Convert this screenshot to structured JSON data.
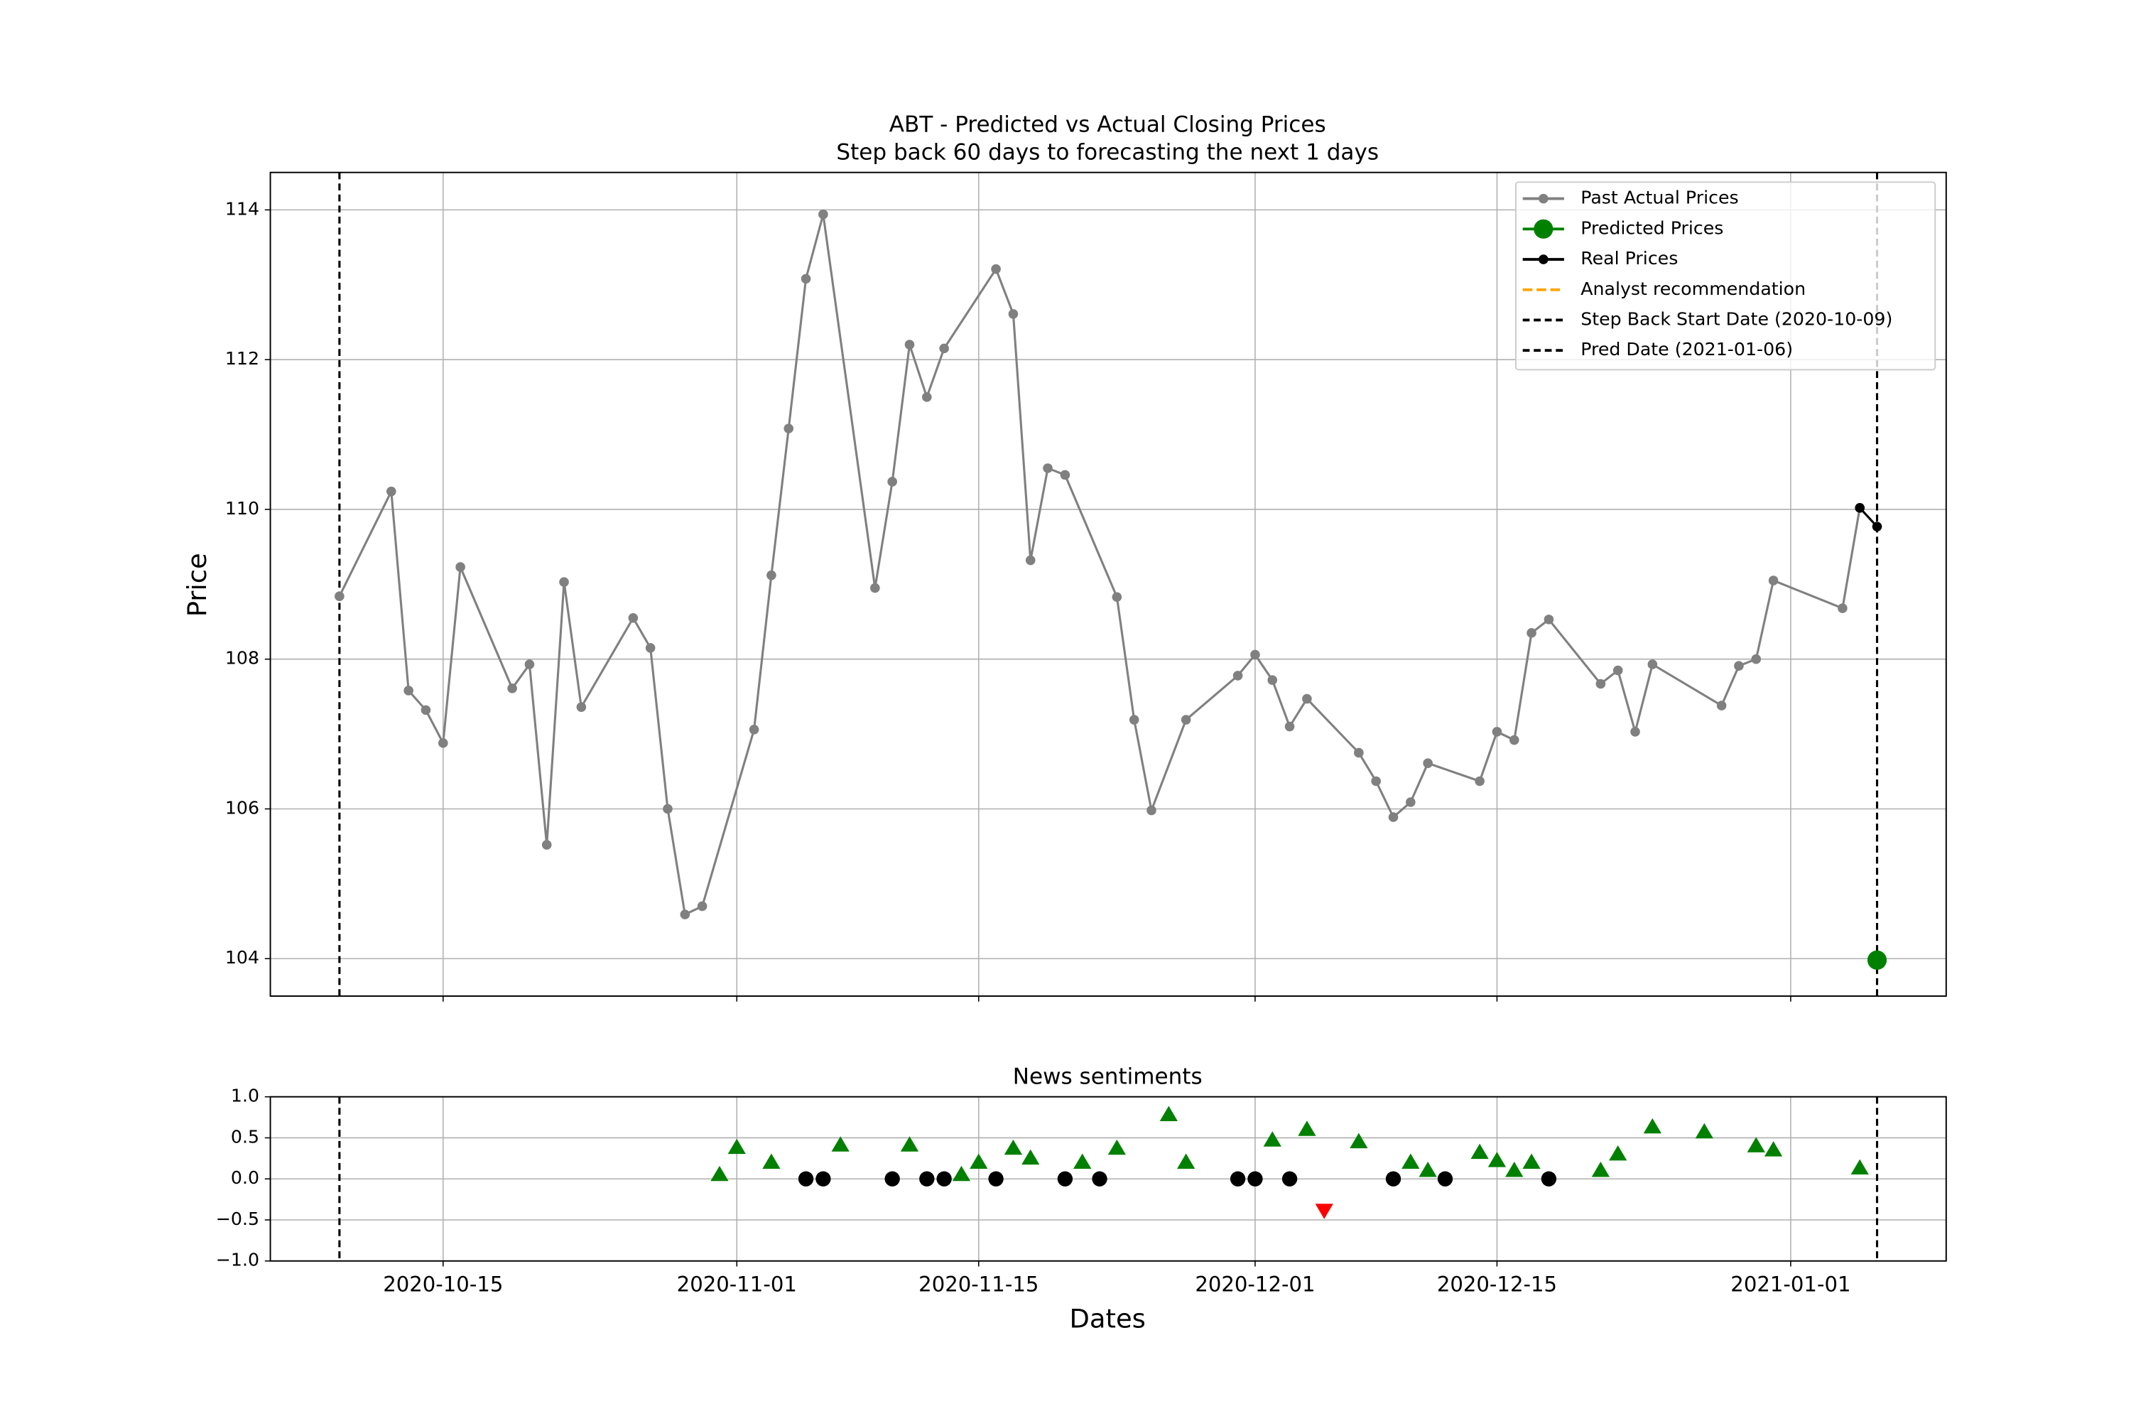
{
  "chart_data": [
    {
      "type": "line",
      "title": "ABT - Predicted vs Actual Closing Prices",
      "subtitle": "Step back 60 days to forecasting the next 1 days",
      "ylabel": "Price",
      "xlim": [
        "2020-10-05",
        "2021-01-10"
      ],
      "xticks": [
        "2020-10-15",
        "2020-11-01",
        "2020-11-15",
        "2020-12-01",
        "2020-12-15",
        "2021-01-01"
      ],
      "ylim": [
        103.5,
        114.5
      ],
      "yticks": [
        104,
        106,
        108,
        110,
        112,
        114
      ],
      "grid": true,
      "legend": "upper right",
      "series": [
        {
          "name": "Past Actual Prices",
          "color": "#808080",
          "x": [
            "2020-10-09",
            "2020-10-12",
            "2020-10-13",
            "2020-10-14",
            "2020-10-15",
            "2020-10-16",
            "2020-10-19",
            "2020-10-20",
            "2020-10-21",
            "2020-10-22",
            "2020-10-23",
            "2020-10-26",
            "2020-10-27",
            "2020-10-28",
            "2020-10-29",
            "2020-10-30",
            "2020-11-02",
            "2020-11-03",
            "2020-11-04",
            "2020-11-05",
            "2020-11-06",
            "2020-11-09",
            "2020-11-10",
            "2020-11-11",
            "2020-11-12",
            "2020-11-13",
            "2020-11-16",
            "2020-11-17",
            "2020-11-18",
            "2020-11-19",
            "2020-11-20",
            "2020-11-23",
            "2020-11-24",
            "2020-11-25",
            "2020-11-27",
            "2020-11-30",
            "2020-12-01",
            "2020-12-02",
            "2020-12-03",
            "2020-12-04",
            "2020-12-07",
            "2020-12-08",
            "2020-12-09",
            "2020-12-10",
            "2020-12-11",
            "2020-12-14",
            "2020-12-15",
            "2020-12-16",
            "2020-12-17",
            "2020-12-18",
            "2020-12-21",
            "2020-12-22",
            "2020-12-23",
            "2020-12-24",
            "2020-12-28",
            "2020-12-29",
            "2020-12-30",
            "2020-12-31",
            "2021-01-04",
            "2021-01-05"
          ],
          "values": [
            108.84,
            110.24,
            107.58,
            107.32,
            106.88,
            109.23,
            107.61,
            107.93,
            105.52,
            109.03,
            107.36,
            108.55,
            108.15,
            106.0,
            104.59,
            104.7,
            107.06,
            109.12,
            111.08,
            113.08,
            113.94,
            108.95,
            110.37,
            112.2,
            111.5,
            112.15,
            113.21,
            112.61,
            109.32,
            110.55,
            110.46,
            108.83,
            107.19,
            105.98,
            107.19,
            107.78,
            108.06,
            107.72,
            107.1,
            107.47,
            106.75,
            106.37,
            105.89,
            106.09,
            106.61,
            106.37,
            107.03,
            106.92,
            108.35,
            108.53,
            107.67,
            107.85,
            107.03,
            107.93,
            107.38,
            107.91,
            108.0,
            109.05,
            108.68,
            110.02
          ]
        },
        {
          "name": "Predicted Prices",
          "color": "#008000",
          "x": [
            "2021-01-06"
          ],
          "values": [
            103.98
          ]
        },
        {
          "name": "Real Prices",
          "color": "#000000",
          "x": [
            "2021-01-05",
            "2021-01-06"
          ],
          "values": [
            110.02,
            109.77
          ]
        },
        {
          "name": "Analyst recommendation",
          "color": "#ffa500",
          "x": [],
          "values": []
        }
      ],
      "vlines": [
        {
          "name": "Step Back Start Date (2020-10-09)",
          "x": "2020-10-09",
          "color": "#000000"
        },
        {
          "name": "Pred Date (2021-01-06)",
          "x": "2021-01-06",
          "color": "#000000"
        }
      ]
    },
    {
      "type": "scatter",
      "title": "News sentiments",
      "xlabel": "Dates",
      "xlim": [
        "2020-10-05",
        "2021-01-10"
      ],
      "xticks": [
        "2020-10-15",
        "2020-11-01",
        "2020-11-15",
        "2020-12-01",
        "2020-12-15",
        "2021-01-01"
      ],
      "ylim": [
        -1,
        1
      ],
      "yticks": [
        {
          "value": 1,
          "label": "1.0"
        },
        {
          "value": 0.5,
          "label": "0.5"
        },
        {
          "value": 0,
          "label": "0.0"
        },
        {
          "value": -0.5,
          "label": "−0.5"
        },
        {
          "value": -1,
          "label": "−1.0"
        }
      ],
      "grid": true,
      "marker_colors": {
        "positive": "#008000",
        "neutral": "#000000",
        "negative": "#ff0000"
      },
      "x": [
        "2020-10-31",
        "2020-11-01",
        "2020-11-03",
        "2020-11-05",
        "2020-11-06",
        "2020-11-07",
        "2020-11-10",
        "2020-11-11",
        "2020-11-12",
        "2020-11-13",
        "2020-11-14",
        "2020-11-15",
        "2020-11-16",
        "2020-11-17",
        "2020-11-18",
        "2020-11-20",
        "2020-11-21",
        "2020-11-22",
        "2020-11-23",
        "2020-11-26",
        "2020-11-27",
        "2020-11-30",
        "2020-12-01",
        "2020-12-02",
        "2020-12-03",
        "2020-12-04",
        "2020-12-05",
        "2020-12-07",
        "2020-12-09",
        "2020-12-10",
        "2020-12-11",
        "2020-12-12",
        "2020-12-14",
        "2020-12-15",
        "2020-12-16",
        "2020-12-17",
        "2020-12-18",
        "2020-12-21",
        "2020-12-22",
        "2020-12-24",
        "2020-12-27",
        "2020-12-30",
        "2020-12-31",
        "2021-01-05"
      ],
      "values": [
        0.05,
        0.38,
        0.2,
        0,
        0,
        0.41,
        0,
        0.41,
        0,
        0,
        0.05,
        0.2,
        0,
        0.37,
        0.25,
        0,
        0.2,
        0,
        0.37,
        0.78,
        0.2,
        0,
        0,
        0.47,
        0,
        0.6,
        -0.38,
        0.45,
        0,
        0.2,
        0.1,
        0,
        0.32,
        0.22,
        0.1,
        0.2,
        0,
        0.1,
        0.3,
        0.63,
        0.57,
        0.4,
        0.35,
        0.13
      ],
      "vlines": [
        "2020-10-09",
        "2021-01-06"
      ]
    }
  ]
}
